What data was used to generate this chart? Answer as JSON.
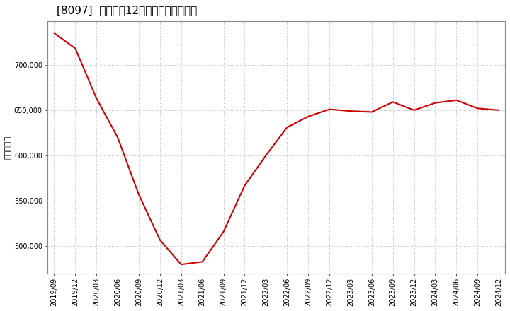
{
  "title": "[8097]  売上高の12か月移動合計の推移",
  "ylabel": "（百万円）",
  "line_color": "#cc0000",
  "background_color": "#ffffff",
  "plot_bg_color": "#ffffff",
  "grid_color": "#b0b0b0",
  "dates": [
    "2019/09",
    "2019/12",
    "2020/03",
    "2020/06",
    "2020/09",
    "2020/12",
    "2021/03",
    "2021/06",
    "2021/09",
    "2021/12",
    "2022/03",
    "2022/06",
    "2022/09",
    "2022/12",
    "2023/03",
    "2023/06",
    "2023/09",
    "2023/12",
    "2024/03",
    "2024/06",
    "2024/09",
    "2024/12"
  ],
  "values": [
    735000,
    718000,
    663000,
    620000,
    557000,
    507000,
    480000,
    483000,
    516000,
    567000,
    600000,
    631000,
    643000,
    651000,
    649000,
    648000,
    659000,
    650000,
    658000,
    661000,
    652000,
    650000
  ],
  "yticks": [
    500000,
    550000,
    600000,
    650000,
    700000
  ],
  "ylim": [
    470000,
    748000
  ],
  "figsize": [
    7.2,
    4.4
  ],
  "dpi": 100,
  "title_fontsize": 11,
  "ylabel_fontsize": 8,
  "tick_fontsize": 7
}
